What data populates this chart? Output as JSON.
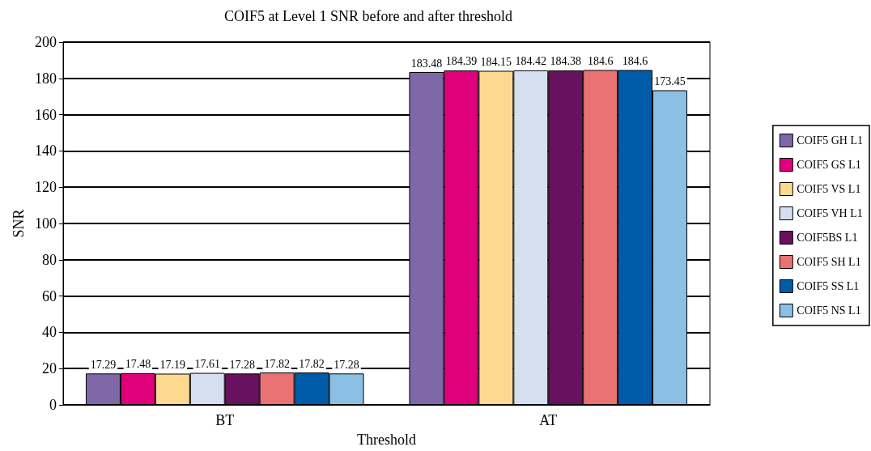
{
  "chart_data": {
    "type": "bar",
    "title": "COIF5 at Level 1 SNR before and after threshold",
    "xlabel": "Threshold",
    "ylabel": "SNR",
    "categories": [
      "BT",
      "AT"
    ],
    "series": [
      {
        "name": "COIF5 GH L1",
        "color": "#7f68a8",
        "values": [
          17.29,
          183.48
        ]
      },
      {
        "name": "COIF5 GS L1",
        "color": "#e0007a",
        "values": [
          17.48,
          184.39
        ]
      },
      {
        "name": "COIF5 VS L1",
        "color": "#fdd98f",
        "values": [
          17.19,
          184.15
        ]
      },
      {
        "name": "COIF5 VH L1",
        "color": "#d6dff0",
        "values": [
          17.61,
          184.42
        ]
      },
      {
        "name": "COIF5BS L1",
        "color": "#68115e",
        "values": [
          17.28,
          184.38
        ]
      },
      {
        "name": "COIF5 SH L1",
        "color": "#ea7273",
        "values": [
          17.82,
          184.6
        ]
      },
      {
        "name": "COIF5 SS L1",
        "color": "#005ca9",
        "values": [
          17.82,
          184.6
        ]
      },
      {
        "name": "COIF5 NS L1",
        "color": "#8bbfe3",
        "values": [
          17.28,
          173.45
        ]
      }
    ],
    "ylim": [
      0,
      200
    ],
    "yticks": [
      0,
      20,
      40,
      60,
      80,
      100,
      120,
      140,
      160,
      180,
      200
    ],
    "grid": "y",
    "legend": "right",
    "data_labels": true
  }
}
